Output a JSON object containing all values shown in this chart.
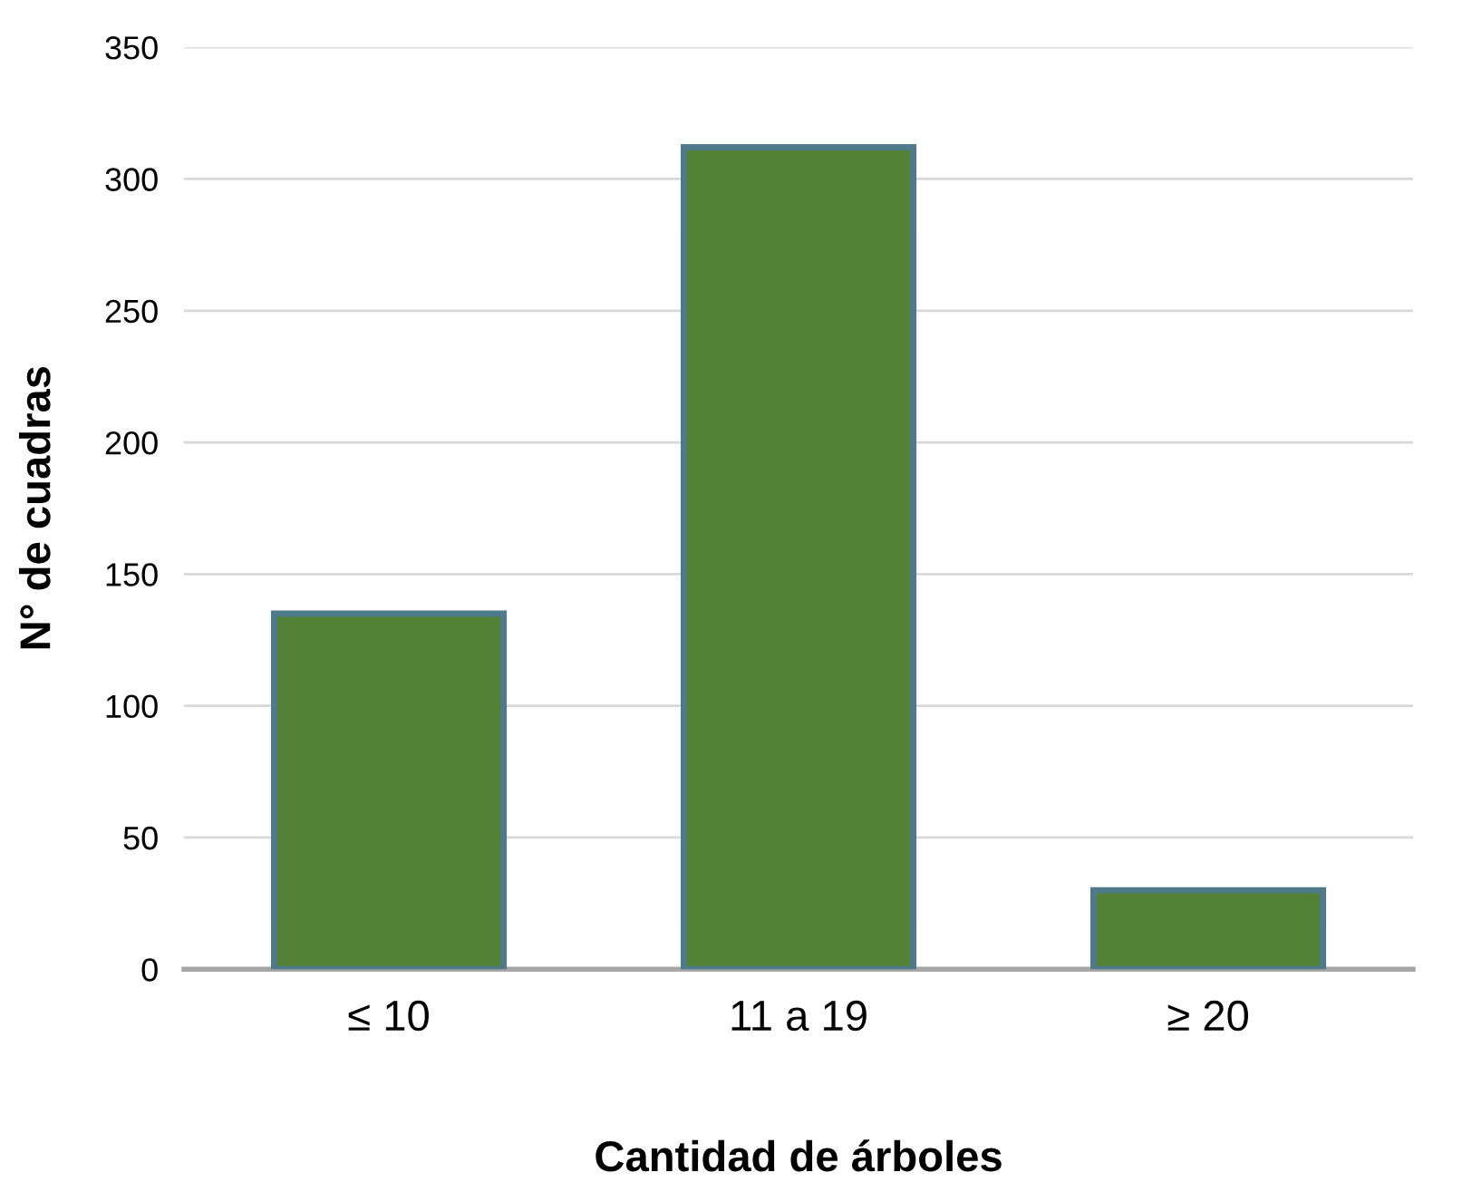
{
  "chart_data": {
    "type": "bar",
    "xlabel": "Cantidad de árboles",
    "ylabel": "N° de cuadras",
    "categories": [
      "≤ 10",
      "11 a 19",
      "≥ 20"
    ],
    "values": [
      135,
      312,
      30
    ],
    "color": "#538135",
    "ylim": [
      0,
      350
    ],
    "yticks": [
      0,
      50,
      100,
      150,
      200,
      250,
      300,
      350
    ],
    "grid": "y"
  }
}
